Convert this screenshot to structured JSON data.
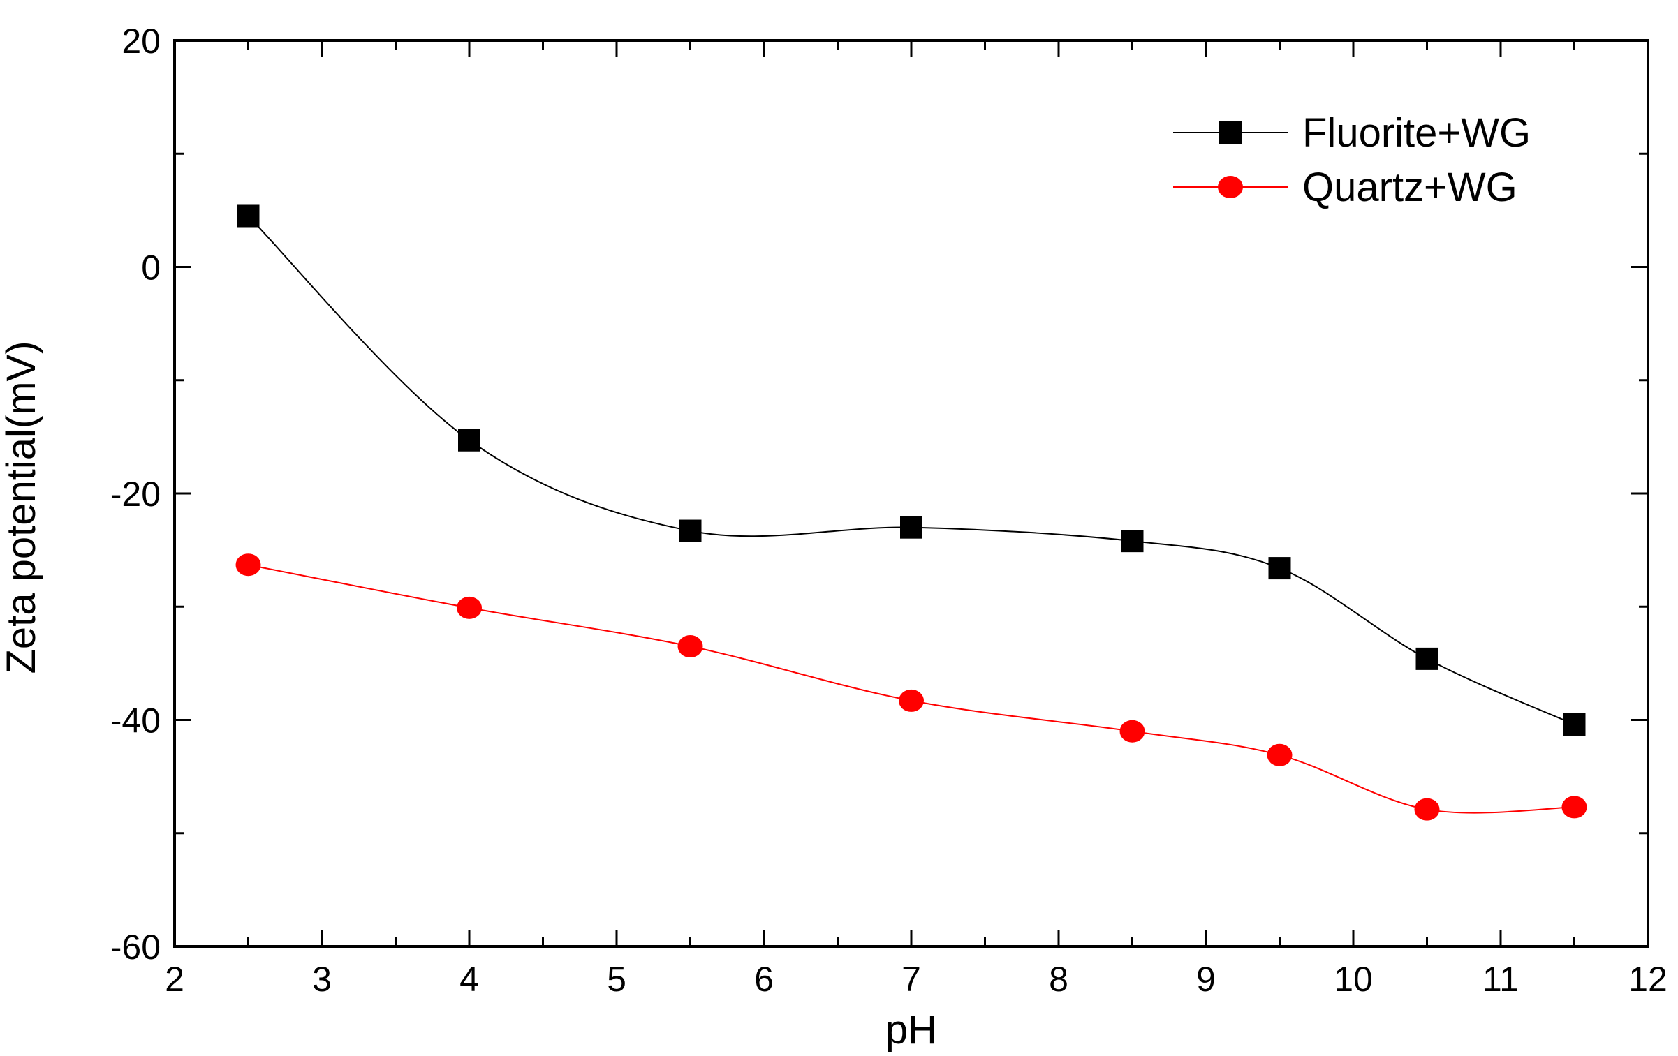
{
  "chart_data": {
    "type": "line",
    "title": "",
    "xlabel": "pH",
    "ylabel": "Zeta potential(mV)",
    "xlim": [
      2,
      12
    ],
    "ylim": [
      -60,
      20
    ],
    "x_ticks": [
      2,
      3,
      4,
      5,
      6,
      7,
      8,
      9,
      10,
      11,
      12
    ],
    "x_tick_labels": [
      "2",
      "3",
      "4",
      "5",
      "6",
      "7",
      "8",
      "9",
      "10",
      "11",
      "12"
    ],
    "y_ticks": [
      -60,
      -40,
      -20,
      0,
      20
    ],
    "y_tick_labels": [
      "-60",
      "-40",
      "-20",
      "0",
      "20"
    ],
    "grid": false,
    "legend_position": "top-right",
    "series": [
      {
        "name": "Fluorite+WG",
        "marker": "square",
        "color": "#000000",
        "line_color": "#000000",
        "x": [
          2.5,
          4,
          5.5,
          7,
          8.5,
          9.5,
          10.5,
          11.5
        ],
        "y": [
          4.5,
          -15.3,
          -23.3,
          -23.0,
          -24.2,
          -26.6,
          -34.6,
          -40.4
        ]
      },
      {
        "name": "Quartz+WG",
        "marker": "circle",
        "color": "#ff0000",
        "line_color": "#ff0000",
        "x": [
          2.5,
          4,
          5.5,
          7,
          8.5,
          9.5,
          10.5,
          11.5
        ],
        "y": [
          -26.3,
          -30.1,
          -33.5,
          -38.3,
          -41.0,
          -43.1,
          -47.9,
          -47.7
        ]
      }
    ]
  }
}
